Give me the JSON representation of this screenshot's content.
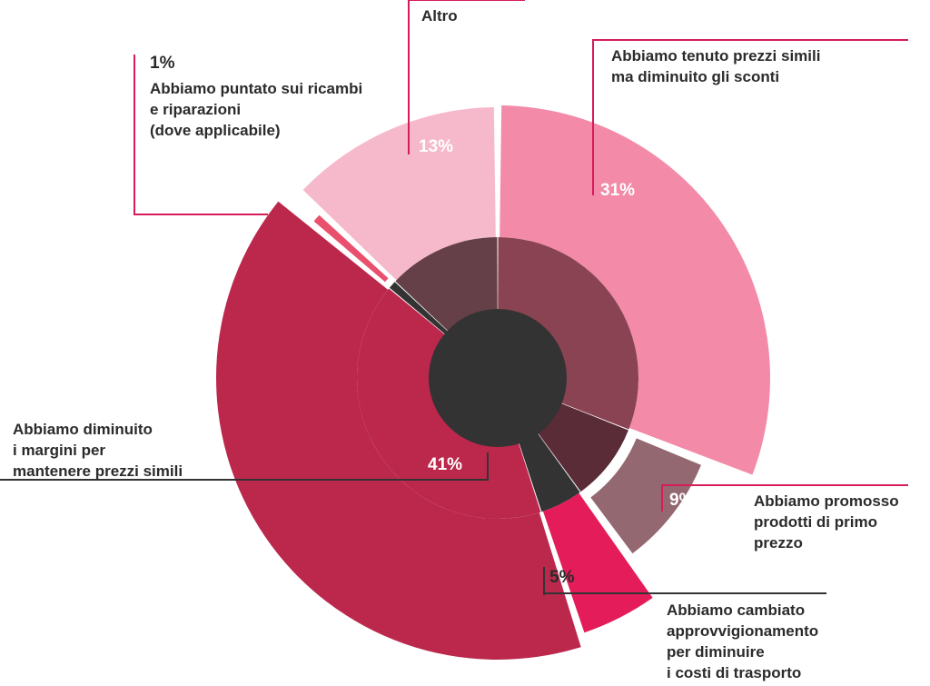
{
  "chart_data": {
    "type": "pie",
    "slices": [
      {
        "label": "Abbiamo tenuto prezzi simili\nma diminuito gli sconti",
        "value": 31,
        "display": "31%",
        "color": "#f28aa8",
        "inner_color": "#8a4352"
      },
      {
        "label": "Abbiamo promosso\nprodotti di primo\nprezzo",
        "value": 9,
        "display": "9%",
        "color": "#946870",
        "inner_color": "#5a2c38"
      },
      {
        "label": "Abbiamo cambiato\napprovvigionamento\nper diminuire\ni costi di trasporto",
        "value": 5,
        "display": "5%",
        "color": "#e41d5a",
        "inner_color": "#333333"
      },
      {
        "label": "Abbiamo diminuito\ni margini per\nmantenere prezzi simili",
        "value": 41,
        "display": "41%",
        "color": "#bb284c",
        "inner_color": "#bb284c"
      },
      {
        "label": "Abbiamo puntato sui ricambi\ne riparazioni\n(dove applicabile)",
        "value": 1,
        "display": "1%",
        "color": "#e9506e",
        "inner_color": "#333333"
      },
      {
        "label": "Altro",
        "value": 13,
        "display": "13%",
        "color": "#f6b9cb",
        "inner_color": "#664048"
      }
    ],
    "center_color": "#333333",
    "leader_color": "#d61c5b"
  }
}
